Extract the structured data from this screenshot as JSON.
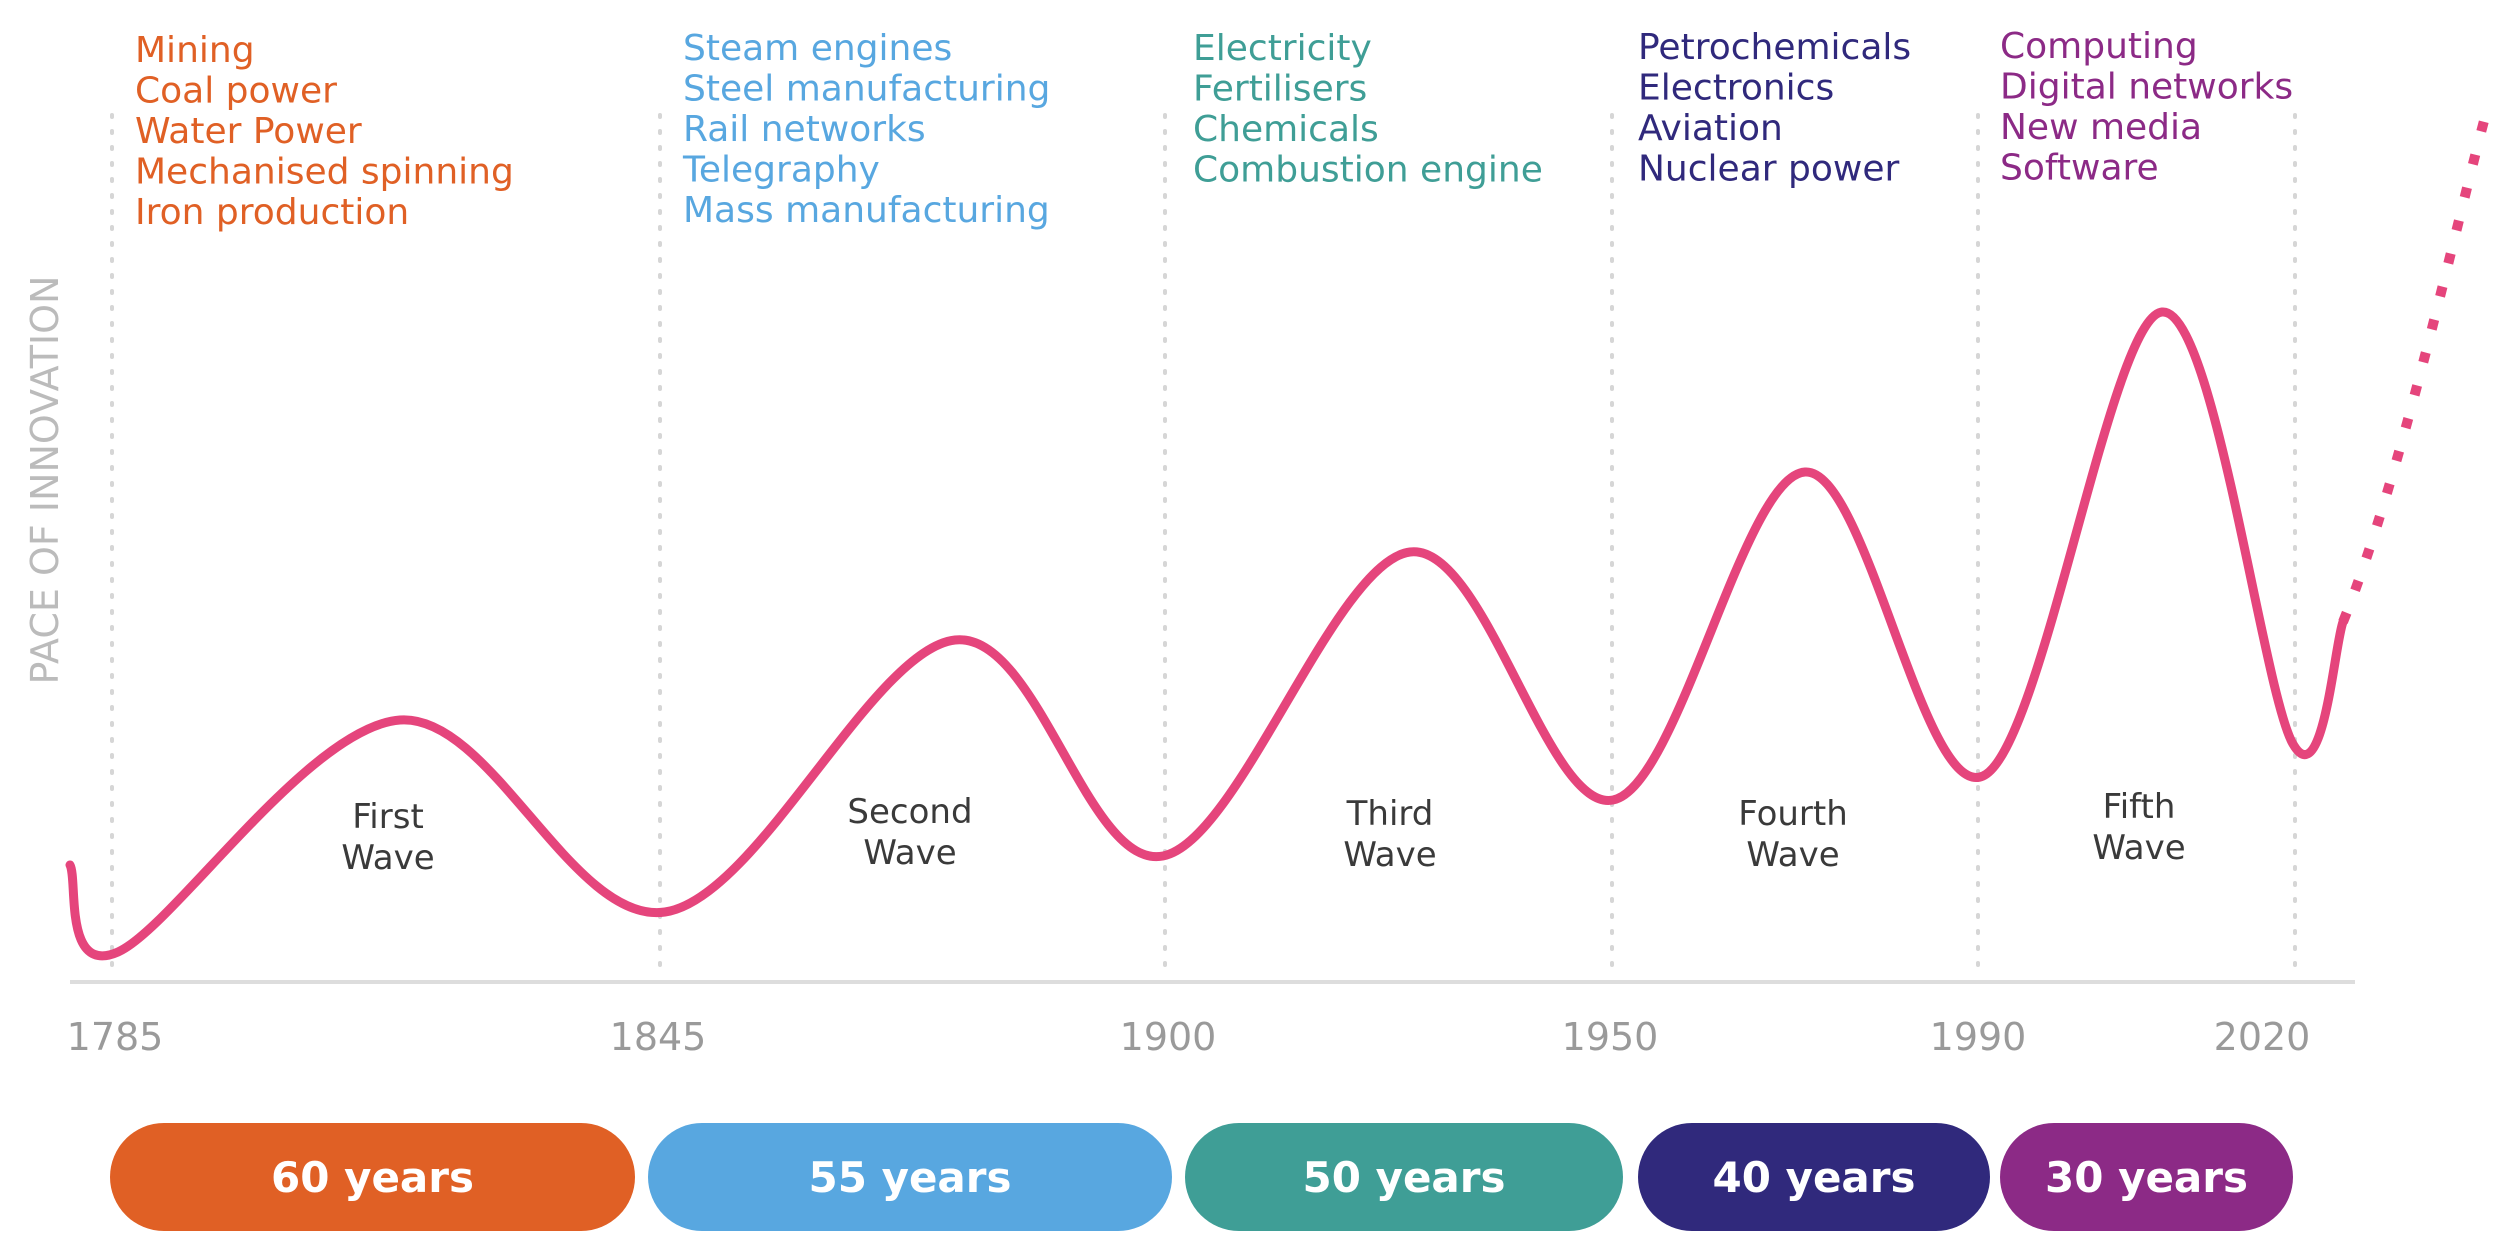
{
  "chart_data": {
    "type": "line",
    "title": "",
    "ylabel": "PACE OF INNOVATION",
    "xlabel": "",
    "x_ticks": [
      "1785",
      "1845",
      "1900",
      "1950",
      "1990",
      "2020"
    ],
    "curve_color": "#e5457c",
    "waves": [
      {
        "name": "First Wave",
        "label_lines": [
          "First",
          "Wave"
        ],
        "start": 1785,
        "end": 1845,
        "duration": "60 years",
        "color": "#e06025",
        "technologies": [
          "Mining",
          "Coal power",
          "Water Power",
          "Mechanised spinning",
          "Iron production"
        ]
      },
      {
        "name": "Second Wave",
        "label_lines": [
          "Second",
          "Wave"
        ],
        "start": 1845,
        "end": 1900,
        "duration": "55 years",
        "color": "#58a7e0",
        "technologies": [
          "Steam engines",
          "Steel manufacturing",
          "Rail networks",
          "Telegraphy",
          "Mass manufacturing"
        ]
      },
      {
        "name": "Third Wave",
        "label_lines": [
          "Third",
          "Wave"
        ],
        "start": 1900,
        "end": 1950,
        "duration": "50 years",
        "color": "#3f9e96",
        "technologies": [
          "Electricity",
          "Fertilisers",
          "Chemicals",
          "Combustion engine"
        ]
      },
      {
        "name": "Fourth Wave",
        "label_lines": [
          "Fourth",
          "Wave"
        ],
        "start": 1950,
        "end": 1990,
        "duration": "40 years",
        "color": "#30297c",
        "technologies": [
          "Petrochemicals",
          "Electronics",
          "Aviation",
          "Nuclear power"
        ]
      },
      {
        "name": "Fifth Wave",
        "label_lines": [
          "Fifth",
          "Wave"
        ],
        "start": 1990,
        "end": 2020,
        "duration": "30 years",
        "color": "#8c2a86",
        "technologies": [
          "Computing",
          "Digital networks",
          "New media",
          "Software"
        ]
      }
    ],
    "pace_relative": {
      "minima": [
        0.05,
        0.1,
        0.17,
        0.24,
        0.27,
        0.31
      ],
      "peaks": [
        0.34,
        0.44,
        0.55,
        0.65,
        0.85
      ],
      "projection_end": 1.05
    }
  }
}
